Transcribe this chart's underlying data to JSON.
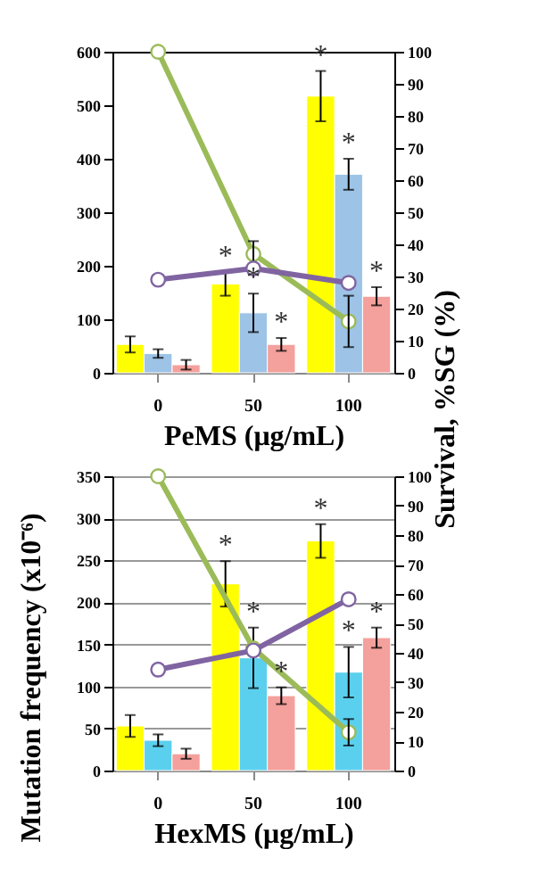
{
  "chart_data": [
    {
      "type": "bar",
      "xlabel": "PeMS (μg/mL)",
      "y2label": "Survival, %SG (%)",
      "categories": [
        "0",
        "50",
        "100"
      ],
      "ylim": [
        0,
        600
      ],
      "yticks": [
        0,
        100,
        200,
        300,
        400,
        500,
        600
      ],
      "y2lim": [
        0,
        100
      ],
      "y2ticks": [
        0,
        10,
        20,
        30,
        40,
        50,
        60,
        70,
        80,
        90,
        100
      ],
      "grid": false,
      "legend": false,
      "series": [
        {
          "color": "#ffff00",
          "values": [
            53,
            166,
            517
          ],
          "errors": [
            15,
            22,
            47
          ],
          "value_labels": [
            null,
            "*",
            "*"
          ]
        },
        {
          "color": "#9dc3e6",
          "values": [
            36,
            112,
            371
          ],
          "errors": [
            8,
            36,
            29
          ],
          "value_labels": [
            null,
            "*",
            "*"
          ]
        },
        {
          "color": "#f4a09c",
          "values": [
            15,
            53,
            143
          ],
          "errors": [
            9,
            12,
            17
          ],
          "value_labels": [
            null,
            "*",
            "*"
          ]
        },
        {
          "type": "line",
          "axis": "y2",
          "color": "#9bbb59",
          "marker": "circle",
          "values": [
            100,
            37,
            16
          ],
          "errors": [
            null,
            4,
            8
          ]
        },
        {
          "type": "line",
          "axis": "y2",
          "color": "#8064a2",
          "marker": "circle",
          "values": [
            29,
            32.5,
            28
          ]
        }
      ]
    },
    {
      "type": "bar",
      "xlabel": "HexMS (μg/mL)",
      "ylabel": "Mutation frequency (x10⁻⁶)",
      "categories": [
        "0",
        "50",
        "100"
      ],
      "ylim": [
        0,
        350
      ],
      "yticks": [
        0,
        50,
        100,
        150,
        200,
        250,
        300,
        350
      ],
      "y2lim": [
        0,
        100
      ],
      "y2ticks": [
        0,
        10,
        20,
        30,
        40,
        50,
        60,
        70,
        80,
        90,
        100
      ],
      "grid": "y",
      "legend": false,
      "series": [
        {
          "color": "#ffff00",
          "values": [
            53,
            222,
            273
          ],
          "errors": [
            13,
            27,
            20
          ],
          "value_labels": [
            null,
            "*",
            "*"
          ]
        },
        {
          "color": "#5bd0ee",
          "values": [
            36,
            134,
            117
          ],
          "errors": [
            7,
            36,
            30
          ],
          "value_labels": [
            null,
            "*",
            "*"
          ]
        },
        {
          "color": "#f4a09c",
          "values": [
            20,
            89,
            158
          ],
          "errors": [
            6,
            10,
            12
          ],
          "value_labels": [
            null,
            "*",
            "*"
          ]
        },
        {
          "type": "line",
          "axis": "y2",
          "color": "#9bbb59",
          "marker": "circle",
          "values": [
            100,
            41.5,
            13
          ],
          "errors": [
            null,
            null,
            4.5
          ]
        },
        {
          "type": "line",
          "axis": "y2",
          "color": "#8064a2",
          "marker": "circle",
          "values": [
            34.3,
            40.8,
            58.2
          ]
        }
      ]
    }
  ]
}
